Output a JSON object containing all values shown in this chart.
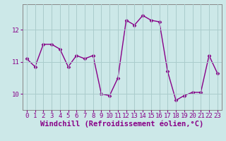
{
  "x": [
    0,
    1,
    2,
    3,
    4,
    5,
    6,
    7,
    8,
    9,
    10,
    11,
    12,
    13,
    14,
    15,
    16,
    17,
    18,
    19,
    20,
    21,
    22,
    23
  ],
  "y": [
    11.1,
    10.85,
    11.55,
    11.55,
    11.4,
    10.85,
    11.2,
    11.1,
    11.2,
    10.0,
    9.95,
    10.5,
    12.3,
    12.15,
    12.45,
    12.3,
    12.25,
    10.7,
    9.8,
    9.95,
    10.05,
    10.05,
    11.2,
    10.65
  ],
  "line_color": "#880088",
  "marker": "D",
  "marker_size": 2.5,
  "bg_color": "#cce8e8",
  "grid_color": "#aacccc",
  "xlabel": "Windchill (Refroidissement éolien,°C)",
  "xlabel_fontsize": 7.5,
  "ylim": [
    9.5,
    12.8
  ],
  "yticks": [
    10,
    11,
    12
  ],
  "xticks": [
    0,
    1,
    2,
    3,
    4,
    5,
    6,
    7,
    8,
    9,
    10,
    11,
    12,
    13,
    14,
    15,
    16,
    17,
    18,
    19,
    20,
    21,
    22,
    23
  ],
  "tick_fontsize": 6.5,
  "line_width": 1.0,
  "spine_color": "#888888"
}
